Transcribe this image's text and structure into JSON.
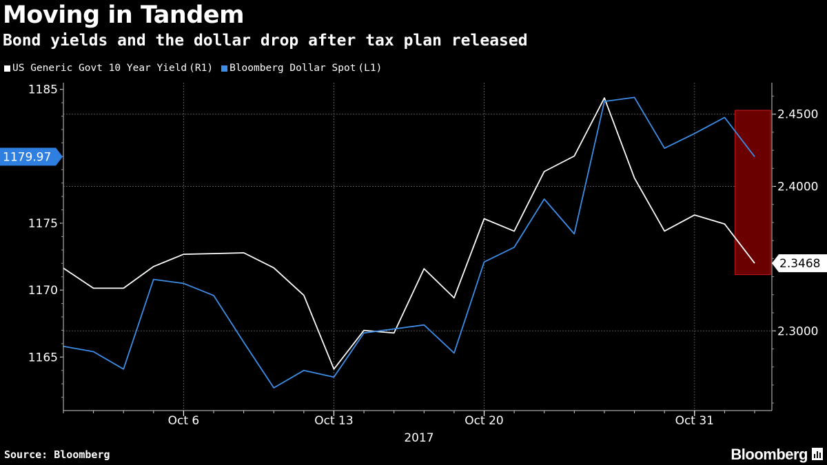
{
  "title": "Moving in Tandem",
  "subtitle": "Bond yields and the dollar drop after tax plan released",
  "source": "Source: Bloomberg",
  "brand": "Bloomberg",
  "colors": {
    "background": "#000000",
    "yield_line": "#ffffff",
    "dollar_line": "#3d8ee8",
    "highlight": "#6a0000",
    "highlight_border": "#d01818",
    "grid": "#5a5a5a"
  },
  "chart_data": {
    "type": "line",
    "x_tick_labels": [
      "Oct 6",
      "Oct 13",
      "Oct 20",
      "Oct 31"
    ],
    "x_tick_index": [
      4,
      9,
      14,
      21
    ],
    "year_label": "2017",
    "left_axis": {
      "ylim": [
        1161,
        1185.5
      ],
      "ticks": [
        1165,
        1170,
        1175,
        1185
      ],
      "tick_labels": [
        "1165",
        "1170",
        "1175",
        "1185"
      ]
    },
    "right_axis": {
      "ylim": [
        2.2448,
        2.4718
      ],
      "ticks": [
        2.3,
        2.4,
        2.45
      ],
      "tick_labels": [
        "2.3000",
        "2.4000",
        "2.4500"
      ]
    },
    "series": [
      {
        "name": "US Generic Govt 10 Year Yield",
        "axis_tag": "(R1)",
        "axis": "right",
        "values": [
          2.3434,
          2.3295,
          2.3295,
          2.3445,
          2.353,
          2.3535,
          2.354,
          2.3436,
          2.3246,
          2.2735,
          2.3003,
          2.2985,
          2.343,
          2.3228,
          2.3776,
          2.369,
          2.4103,
          2.421,
          2.4612,
          2.4058,
          2.3691,
          2.3802,
          2.374,
          2.3468
        ],
        "last_label": "2.3468"
      },
      {
        "name": "Bloomberg Dollar Spot",
        "axis_tag": "(L1)",
        "axis": "left",
        "values": [
          1165.8,
          1165.4,
          1164.1,
          1170.8,
          1170.5,
          1169.6,
          1166.1,
          1162.7,
          1164.0,
          1163.5,
          1166.8,
          1167.1,
          1167.4,
          1165.3,
          1172.1,
          1173.2,
          1176.8,
          1174.2,
          1184.1,
          1184.4,
          1180.6,
          1181.7,
          1182.9,
          1179.97
        ],
        "last_label": "1179.97"
      }
    ],
    "highlight_from_index": 22.35
  }
}
